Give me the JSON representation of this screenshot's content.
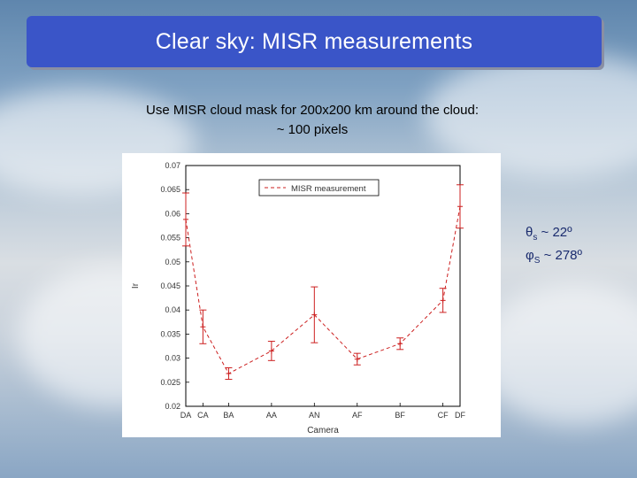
{
  "slide": {
    "title": "Clear sky: MISR measurements",
    "subtitle_line1": "Use MISR cloud mask for 200x200 km around the cloud:",
    "subtitle_line2": "~ 100 pixels",
    "theta_symbol": "θ",
    "theta_sub": "s",
    "theta_value": " ~ 22º",
    "phi_symbol": "φ",
    "phi_sub": "S",
    "phi_value": " ~ 278º"
  },
  "chart_data": {
    "type": "line",
    "categories": [
      "DA",
      "CA",
      "BA",
      "AA",
      "AN",
      "AF",
      "BF",
      "CF",
      "DF"
    ],
    "x_positions": [
      0,
      0.4,
      1,
      2,
      3,
      4,
      5,
      6,
      6.4
    ],
    "series": [
      {
        "name": "MISR measurement",
        "color": "#cc1f1f",
        "style": "dashed",
        "values": [
          0.0588,
          0.0365,
          0.0268,
          0.0315,
          0.039,
          0.0298,
          0.033,
          0.042,
          0.0615
        ],
        "error": [
          0.0055,
          0.0035,
          0.0012,
          0.002,
          0.0058,
          0.0012,
          0.0012,
          0.0025,
          0.0045
        ]
      }
    ],
    "ylim": [
      0.02,
      0.07
    ],
    "yticks": [
      "0.02",
      "0.025",
      "0.03",
      "0.035",
      "0.04",
      "0.045",
      "0.05",
      "0.055",
      "0.06",
      "0.065",
      "0.07"
    ],
    "ylabel": "Ir",
    "xlabel": "Camera",
    "legend_position": "top-center",
    "grid": false
  }
}
